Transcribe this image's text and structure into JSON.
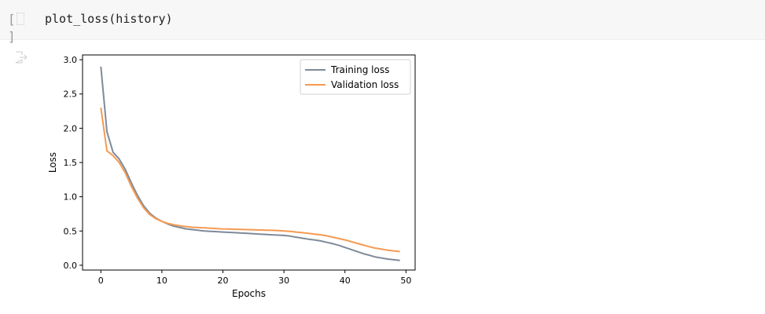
{
  "cell": {
    "code": "plot_loss(history)",
    "prompt_open": "[",
    "prompt_close": "]"
  },
  "output": {
    "icon": "output-arrow-icon"
  },
  "colors": {
    "training": "#7f8a99",
    "validation": "#f59a52",
    "axis": "#000000",
    "cell_bg": "#f7f7f7"
  },
  "chart_data": {
    "type": "line",
    "xlabel": "Epochs",
    "ylabel": "Loss",
    "xlim": [
      -3,
      51.5
    ],
    "ylim": [
      -0.07,
      3.07
    ],
    "xticks": [
      0,
      10,
      20,
      30,
      40,
      50
    ],
    "xtick_labels": [
      "0",
      "10",
      "20",
      "30",
      "40",
      "50"
    ],
    "yticks": [
      0.0,
      0.5,
      1.0,
      1.5,
      2.0,
      2.5,
      3.0
    ],
    "ytick_labels": [
      "0.0",
      "0.5",
      "1.0",
      "1.5",
      "2.0",
      "2.5",
      "3.0"
    ],
    "grid": false,
    "legend_position": "top-right",
    "x": [
      0,
      1,
      2,
      3,
      4,
      5,
      6,
      7,
      8,
      9,
      10,
      11,
      12,
      13,
      14,
      15,
      16,
      17,
      18,
      19,
      20,
      21,
      22,
      23,
      24,
      25,
      26,
      27,
      28,
      29,
      30,
      31,
      32,
      33,
      34,
      35,
      36,
      37,
      38,
      39,
      40,
      41,
      42,
      43,
      44,
      45,
      46,
      47,
      48,
      49
    ],
    "series": [
      {
        "name": "Training loss",
        "color": "#7f8a99",
        "values": [
          2.9,
          1.95,
          1.65,
          1.55,
          1.4,
          1.2,
          1.02,
          0.87,
          0.76,
          0.69,
          0.64,
          0.6,
          0.57,
          0.55,
          0.53,
          0.52,
          0.51,
          0.5,
          0.495,
          0.49,
          0.485,
          0.48,
          0.475,
          0.47,
          0.465,
          0.46,
          0.455,
          0.45,
          0.445,
          0.44,
          0.435,
          0.425,
          0.41,
          0.395,
          0.38,
          0.37,
          0.355,
          0.335,
          0.315,
          0.29,
          0.26,
          0.23,
          0.2,
          0.17,
          0.145,
          0.12,
          0.105,
          0.09,
          0.08,
          0.07
        ]
      },
      {
        "name": "Validation loss",
        "color": "#f59a52",
        "values": [
          2.3,
          1.67,
          1.6,
          1.5,
          1.35,
          1.15,
          0.98,
          0.84,
          0.74,
          0.68,
          0.64,
          0.61,
          0.59,
          0.575,
          0.565,
          0.555,
          0.55,
          0.545,
          0.54,
          0.535,
          0.53,
          0.528,
          0.525,
          0.522,
          0.52,
          0.518,
          0.515,
          0.512,
          0.51,
          0.505,
          0.5,
          0.495,
          0.485,
          0.475,
          0.465,
          0.455,
          0.445,
          0.43,
          0.41,
          0.39,
          0.37,
          0.345,
          0.32,
          0.295,
          0.27,
          0.25,
          0.235,
          0.22,
          0.21,
          0.2
        ]
      }
    ]
  }
}
